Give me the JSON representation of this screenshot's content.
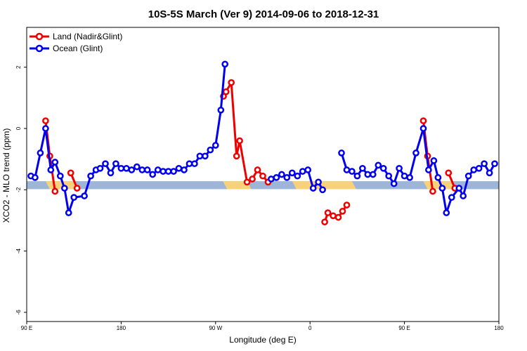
{
  "chart_data": {
    "type": "line",
    "title": "10S-5S March (Ver 9)   2014-09-06 to 2018-12-31",
    "xlabel": "Longitude (deg E)",
    "ylabel": "XCO2 - MLO trend (ppm)",
    "xlim": [
      90,
      540
    ],
    "ylim": [
      -6.3,
      3.3
    ],
    "x_ticks": [
      {
        "value": 90,
        "label": "90 E"
      },
      {
        "value": 180,
        "label": "180"
      },
      {
        "value": 270,
        "label": "90 W"
      },
      {
        "value": 360,
        "label": "0"
      },
      {
        "value": 450,
        "label": "90 E"
      },
      {
        "value": 540,
        "label": "180"
      }
    ],
    "y_ticks": [
      {
        "value": 2,
        "label": "2"
      },
      {
        "value": 0,
        "label": "0"
      },
      {
        "value": -2,
        "label": "-2"
      },
      {
        "value": -4,
        "label": "-4"
      },
      {
        "value": -6,
        "label": "-6"
      }
    ],
    "legend_position": "top-left",
    "grid": false,
    "series": [
      {
        "name": "Land (Nadir&Glint)",
        "color": "#ee0000",
        "segments": [
          [
            [
              108,
              0.25
            ],
            [
              112,
              -0.9
            ],
            [
              117,
              -2.05
            ]
          ],
          [
            [
              132,
              -1.45
            ],
            [
              138,
              -1.95
            ]
          ],
          [
            [
              277.5,
              1.05
            ],
            [
              280,
              1.2
            ],
            [
              285,
              1.5
            ],
            [
              290,
              -0.9
            ],
            [
              293,
              -0.4
            ],
            [
              300,
              -1.75
            ],
            [
              305,
              -1.65
            ],
            [
              310,
              -1.35
            ],
            [
              315,
              -1.55
            ],
            [
              320,
              -1.75
            ]
          ],
          [
            [
              374,
              -3.05
            ],
            [
              377,
              -2.75
            ],
            [
              382,
              -2.85
            ],
            [
              387,
              -2.9
            ],
            [
              391,
              -2.7
            ],
            [
              395,
              -2.5
            ]
          ],
          [
            [
              468,
              0.25
            ],
            [
              472,
              -0.9
            ],
            [
              477,
              -2.05
            ]
          ],
          [
            [
              492,
              -1.45
            ],
            [
              498,
              -1.95
            ]
          ]
        ]
      },
      {
        "name": "Ocean (Glint)",
        "color": "#0000ee",
        "segments": [
          [
            [
              94,
              -1.55
            ],
            [
              98,
              -1.6
            ],
            [
              103,
              -0.8
            ],
            [
              108,
              0.0
            ],
            [
              113,
              -1.35
            ],
            [
              117,
              -1.1
            ],
            [
              122,
              -1.55
            ],
            [
              126,
              -1.95
            ],
            [
              130,
              -2.75
            ],
            [
              135,
              -2.25
            ],
            [
              145,
              -2.2
            ],
            [
              151,
              -1.55
            ],
            [
              156,
              -1.35
            ],
            [
              160,
              -1.3
            ],
            [
              165,
              -1.15
            ],
            [
              170,
              -1.45
            ],
            [
              175,
              -1.15
            ],
            [
              180,
              -1.3
            ],
            [
              185,
              -1.3
            ],
            [
              190,
              -1.35
            ],
            [
              195,
              -1.25
            ],
            [
              200,
              -1.35
            ],
            [
              205,
              -1.35
            ],
            [
              210,
              -1.5
            ],
            [
              215,
              -1.35
            ],
            [
              220,
              -1.4
            ],
            [
              225,
              -1.4
            ],
            [
              230,
              -1.4
            ],
            [
              235,
              -1.3
            ],
            [
              240,
              -1.35
            ],
            [
              245,
              -1.15
            ],
            [
              250,
              -1.15
            ],
            [
              255,
              -0.9
            ],
            [
              260,
              -0.9
            ],
            [
              265,
              -0.7
            ],
            [
              270,
              -0.55
            ],
            [
              275,
              0.6
            ],
            [
              279,
              2.1
            ]
          ],
          [
            [
              323,
              -1.65
            ],
            [
              328,
              -1.6
            ],
            [
              333,
              -1.5
            ],
            [
              338,
              -1.6
            ],
            [
              343,
              -1.45
            ],
            [
              348,
              -1.55
            ],
            [
              353,
              -1.4
            ],
            [
              358,
              -1.35
            ],
            [
              363,
              -1.95
            ],
            [
              368,
              -1.75
            ],
            [
              372,
              -2.0
            ]
          ],
          [
            [
              390,
              -0.8
            ],
            [
              395,
              -1.35
            ],
            [
              400,
              -1.4
            ],
            [
              405,
              -1.55
            ],
            [
              410,
              -1.3
            ],
            [
              415,
              -1.5
            ],
            [
              420,
              -1.5
            ],
            [
              425,
              -1.2
            ],
            [
              430,
              -1.3
            ],
            [
              435,
              -1.55
            ],
            [
              440,
              -1.8
            ],
            [
              445,
              -1.3
            ],
            [
              450,
              -1.55
            ],
            [
              455,
              -1.6
            ],
            [
              461,
              -0.8
            ],
            [
              468,
              0.0
            ],
            [
              473,
              -1.35
            ],
            [
              478,
              -1.05
            ],
            [
              482,
              -1.6
            ],
            [
              486,
              -1.95
            ],
            [
              490,
              -2.75
            ],
            [
              495,
              -2.25
            ],
            [
              502,
              -1.95
            ],
            [
              506,
              -2.2
            ],
            [
              511,
              -1.55
            ],
            [
              516,
              -1.35
            ],
            [
              521,
              -1.3
            ],
            [
              526,
              -1.15
            ],
            [
              531,
              -1.45
            ],
            [
              536,
              -1.15
            ]
          ]
        ]
      }
    ],
    "land_band": {
      "y_top": -1.72,
      "y_bottom": -1.98,
      "ocean_color": "#9db5d6",
      "land_color": "#f7d27a",
      "land_ranges": [
        [
          108,
          135
        ],
        [
          277,
          300
        ],
        [
          343,
          400
        ],
        [
          468,
          495
        ]
      ]
    }
  }
}
